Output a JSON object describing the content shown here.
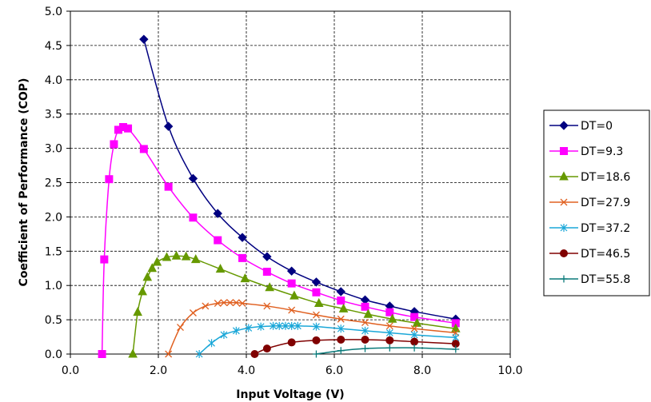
{
  "chart_data": {
    "type": "line",
    "xlabel": "Input Voltage (V)",
    "ylabel": "Coefficient of Performance (COP)",
    "xlim": [
      0,
      10
    ],
    "ylim": [
      0,
      5
    ],
    "x_ticks": [
      "0.0",
      "2.0",
      "4.0",
      "6.0",
      "8.0",
      "10.0"
    ],
    "y_ticks": [
      "0.0",
      "0.5",
      "1.0",
      "1.5",
      "2.0",
      "2.5",
      "3.0",
      "3.5",
      "4.0",
      "4.5",
      "5.0"
    ],
    "grid": "major, dashed",
    "legend_position": "right",
    "series": [
      {
        "name": "DT=0",
        "color": "#000080",
        "marker": "diamond",
        "x": [
          1.67,
          2.23,
          2.79,
          3.35,
          3.91,
          4.47,
          5.03,
          5.59,
          6.15,
          6.7,
          7.26,
          7.82,
          8.76
        ],
        "y": [
          4.59,
          3.32,
          2.56,
          2.05,
          1.7,
          1.42,
          1.21,
          1.05,
          0.91,
          0.79,
          0.7,
          0.62,
          0.51
        ]
      },
      {
        "name": "DT=9.3",
        "color": "#FF00FF",
        "marker": "square",
        "x": [
          0.72,
          0.77,
          0.88,
          0.99,
          1.09,
          1.2,
          1.31,
          1.67,
          2.23,
          2.79,
          3.35,
          3.91,
          4.47,
          5.03,
          5.59,
          6.15,
          6.7,
          7.26,
          7.82,
          8.76
        ],
        "y": [
          0.0,
          1.38,
          2.55,
          3.06,
          3.27,
          3.31,
          3.29,
          2.99,
          2.44,
          1.99,
          1.66,
          1.4,
          1.2,
          1.03,
          0.9,
          0.78,
          0.69,
          0.61,
          0.54,
          0.45
        ]
      },
      {
        "name": "DT=18.6",
        "color": "#669900",
        "marker": "triangle",
        "x": [
          1.42,
          1.53,
          1.64,
          1.75,
          1.86,
          1.97,
          2.19,
          2.41,
          2.63,
          2.85,
          3.41,
          3.97,
          4.53,
          5.09,
          5.65,
          6.21,
          6.77,
          7.32,
          7.88,
          8.76
        ],
        "y": [
          0.0,
          0.61,
          0.91,
          1.12,
          1.25,
          1.34,
          1.41,
          1.43,
          1.42,
          1.38,
          1.24,
          1.1,
          0.97,
          0.85,
          0.74,
          0.66,
          0.58,
          0.51,
          0.45,
          0.37
        ]
      },
      {
        "name": "DT=27.9",
        "color": "#E06020",
        "marker": "x",
        "x": [
          2.23,
          2.5,
          2.79,
          3.07,
          3.35,
          3.49,
          3.63,
          3.77,
          3.91,
          4.47,
          5.03,
          5.59,
          6.15,
          6.7,
          7.26,
          7.82,
          8.76
        ],
        "y": [
          0.0,
          0.39,
          0.6,
          0.7,
          0.74,
          0.75,
          0.75,
          0.75,
          0.74,
          0.7,
          0.64,
          0.57,
          0.51,
          0.46,
          0.41,
          0.37,
          0.31
        ]
      },
      {
        "name": "DT=37.2",
        "color": "#1AA7D8",
        "marker": "asterisk",
        "x": [
          2.93,
          3.21,
          3.49,
          3.77,
          4.05,
          4.33,
          4.61,
          4.75,
          4.89,
          5.03,
          5.17,
          5.59,
          6.15,
          6.7,
          7.26,
          7.82,
          8.76
        ],
        "y": [
          0.0,
          0.16,
          0.28,
          0.34,
          0.38,
          0.4,
          0.41,
          0.41,
          0.41,
          0.41,
          0.41,
          0.4,
          0.37,
          0.34,
          0.31,
          0.28,
          0.24
        ]
      },
      {
        "name": "DT=46.5",
        "color": "#800000",
        "marker": "circle",
        "x": [
          4.19,
          4.47,
          5.03,
          5.59,
          6.15,
          6.7,
          7.26,
          7.82,
          8.76
        ],
        "y": [
          0.0,
          0.08,
          0.17,
          0.2,
          0.21,
          0.21,
          0.2,
          0.18,
          0.15
        ]
      },
      {
        "name": "DT=55.8",
        "color": "#0A7A7A",
        "marker": "plus",
        "x": [
          5.59,
          6.15,
          6.7,
          7.26,
          7.82,
          8.76
        ],
        "y": [
          0.0,
          0.05,
          0.08,
          0.09,
          0.09,
          0.07
        ]
      }
    ]
  }
}
